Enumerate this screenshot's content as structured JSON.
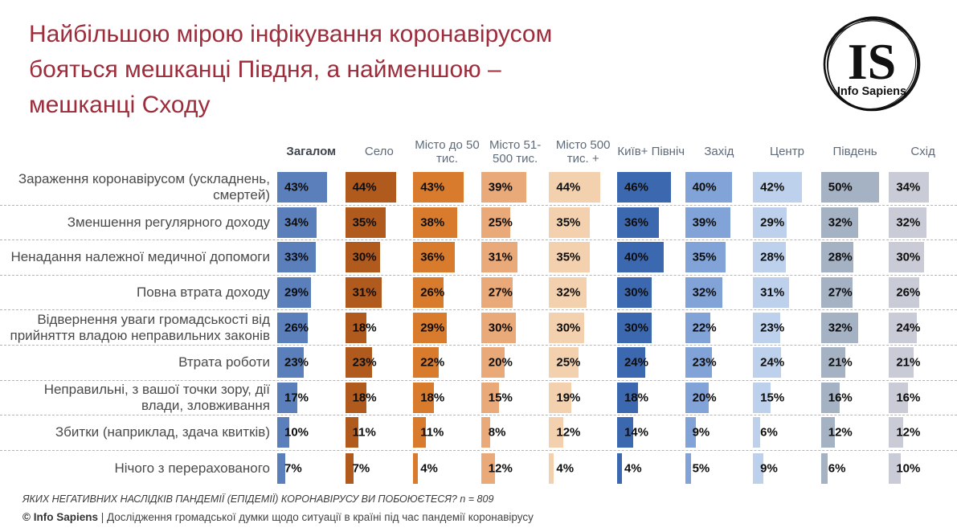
{
  "header": {
    "title": "Найбільшою мірою інфікування коронавірусом\nбояться мешканці Півдня, а найменшою –\nмешканці Сходу",
    "title_color": "#9e2c3b"
  },
  "logo": {
    "monogram": "IS",
    "name": "Info Sapiens"
  },
  "chart_data": {
    "type": "bar",
    "unit": "%",
    "orientation": "horizontal-small-multiples",
    "value_range": [
      0,
      50
    ],
    "columns": [
      {
        "label": "Загалом",
        "color": "#5b7fbb",
        "bold": true
      },
      {
        "label": "Село",
        "color": "#b05a1e"
      },
      {
        "label": "Місто до 50 тис.",
        "color": "#d97b2d"
      },
      {
        "label": "Місто 51-500 тис.",
        "color": "#e9a978"
      },
      {
        "label": "Місто 500 тис. +",
        "color": "#f3d1ae"
      },
      {
        "label": "Київ+ Північ",
        "color": "#3c68b0"
      },
      {
        "label": "Захід",
        "color": "#82a3d8"
      },
      {
        "label": "Центр",
        "color": "#bdd0ec"
      },
      {
        "label": "Південь",
        "color": "#a5b2c4"
      },
      {
        "label": "Схід",
        "color": "#c9cbd6"
      }
    ],
    "rows": [
      {
        "label": "Зараження коронавірусом (ускладнень, смертей)",
        "values": [
          43,
          44,
          43,
          39,
          44,
          46,
          40,
          42,
          50,
          34
        ]
      },
      {
        "label": "Зменшення регулярного доходу",
        "values": [
          34,
          35,
          38,
          25,
          35,
          36,
          39,
          29,
          32,
          32
        ]
      },
      {
        "label": "Ненадання належної медичної допомоги",
        "values": [
          33,
          30,
          36,
          31,
          35,
          40,
          35,
          28,
          28,
          30
        ]
      },
      {
        "label": "Повна втрата доходу",
        "values": [
          29,
          31,
          26,
          27,
          32,
          30,
          32,
          31,
          27,
          26
        ]
      },
      {
        "label": "Відвернення уваги громадськості від прийняття владою неправильних законів",
        "values": [
          26,
          18,
          29,
          30,
          30,
          30,
          22,
          23,
          32,
          24
        ]
      },
      {
        "label": "Втрата роботи",
        "values": [
          23,
          23,
          22,
          20,
          25,
          24,
          23,
          24,
          21,
          21
        ]
      },
      {
        "label": "Неправильні, з вашої точки зору, дії влади, зловживання",
        "values": [
          17,
          18,
          18,
          15,
          19,
          18,
          20,
          15,
          16,
          16
        ]
      },
      {
        "label": "Збитки (наприклад, здача квитків)",
        "values": [
          10,
          11,
          11,
          8,
          12,
          14,
          9,
          6,
          12,
          12
        ]
      },
      {
        "label": "Нічого з перерахованого",
        "values": [
          7,
          7,
          4,
          12,
          4,
          4,
          5,
          9,
          6,
          10
        ]
      }
    ]
  },
  "footer": {
    "question": "ЯКИХ НЕГАТИВНИХ НАСЛІДКІВ ПАНДЕМІЇ (ЕПІДЕМІЇ) КОРОНАВІРУСУ ВИ ПОБОЮЄТЕСЯ? n = 809",
    "source_bold": "© Info Sapiens",
    "source_rest": " | Дослідження громадської думки щодо ситуації в країні під час пандемії коронавірусу"
  }
}
